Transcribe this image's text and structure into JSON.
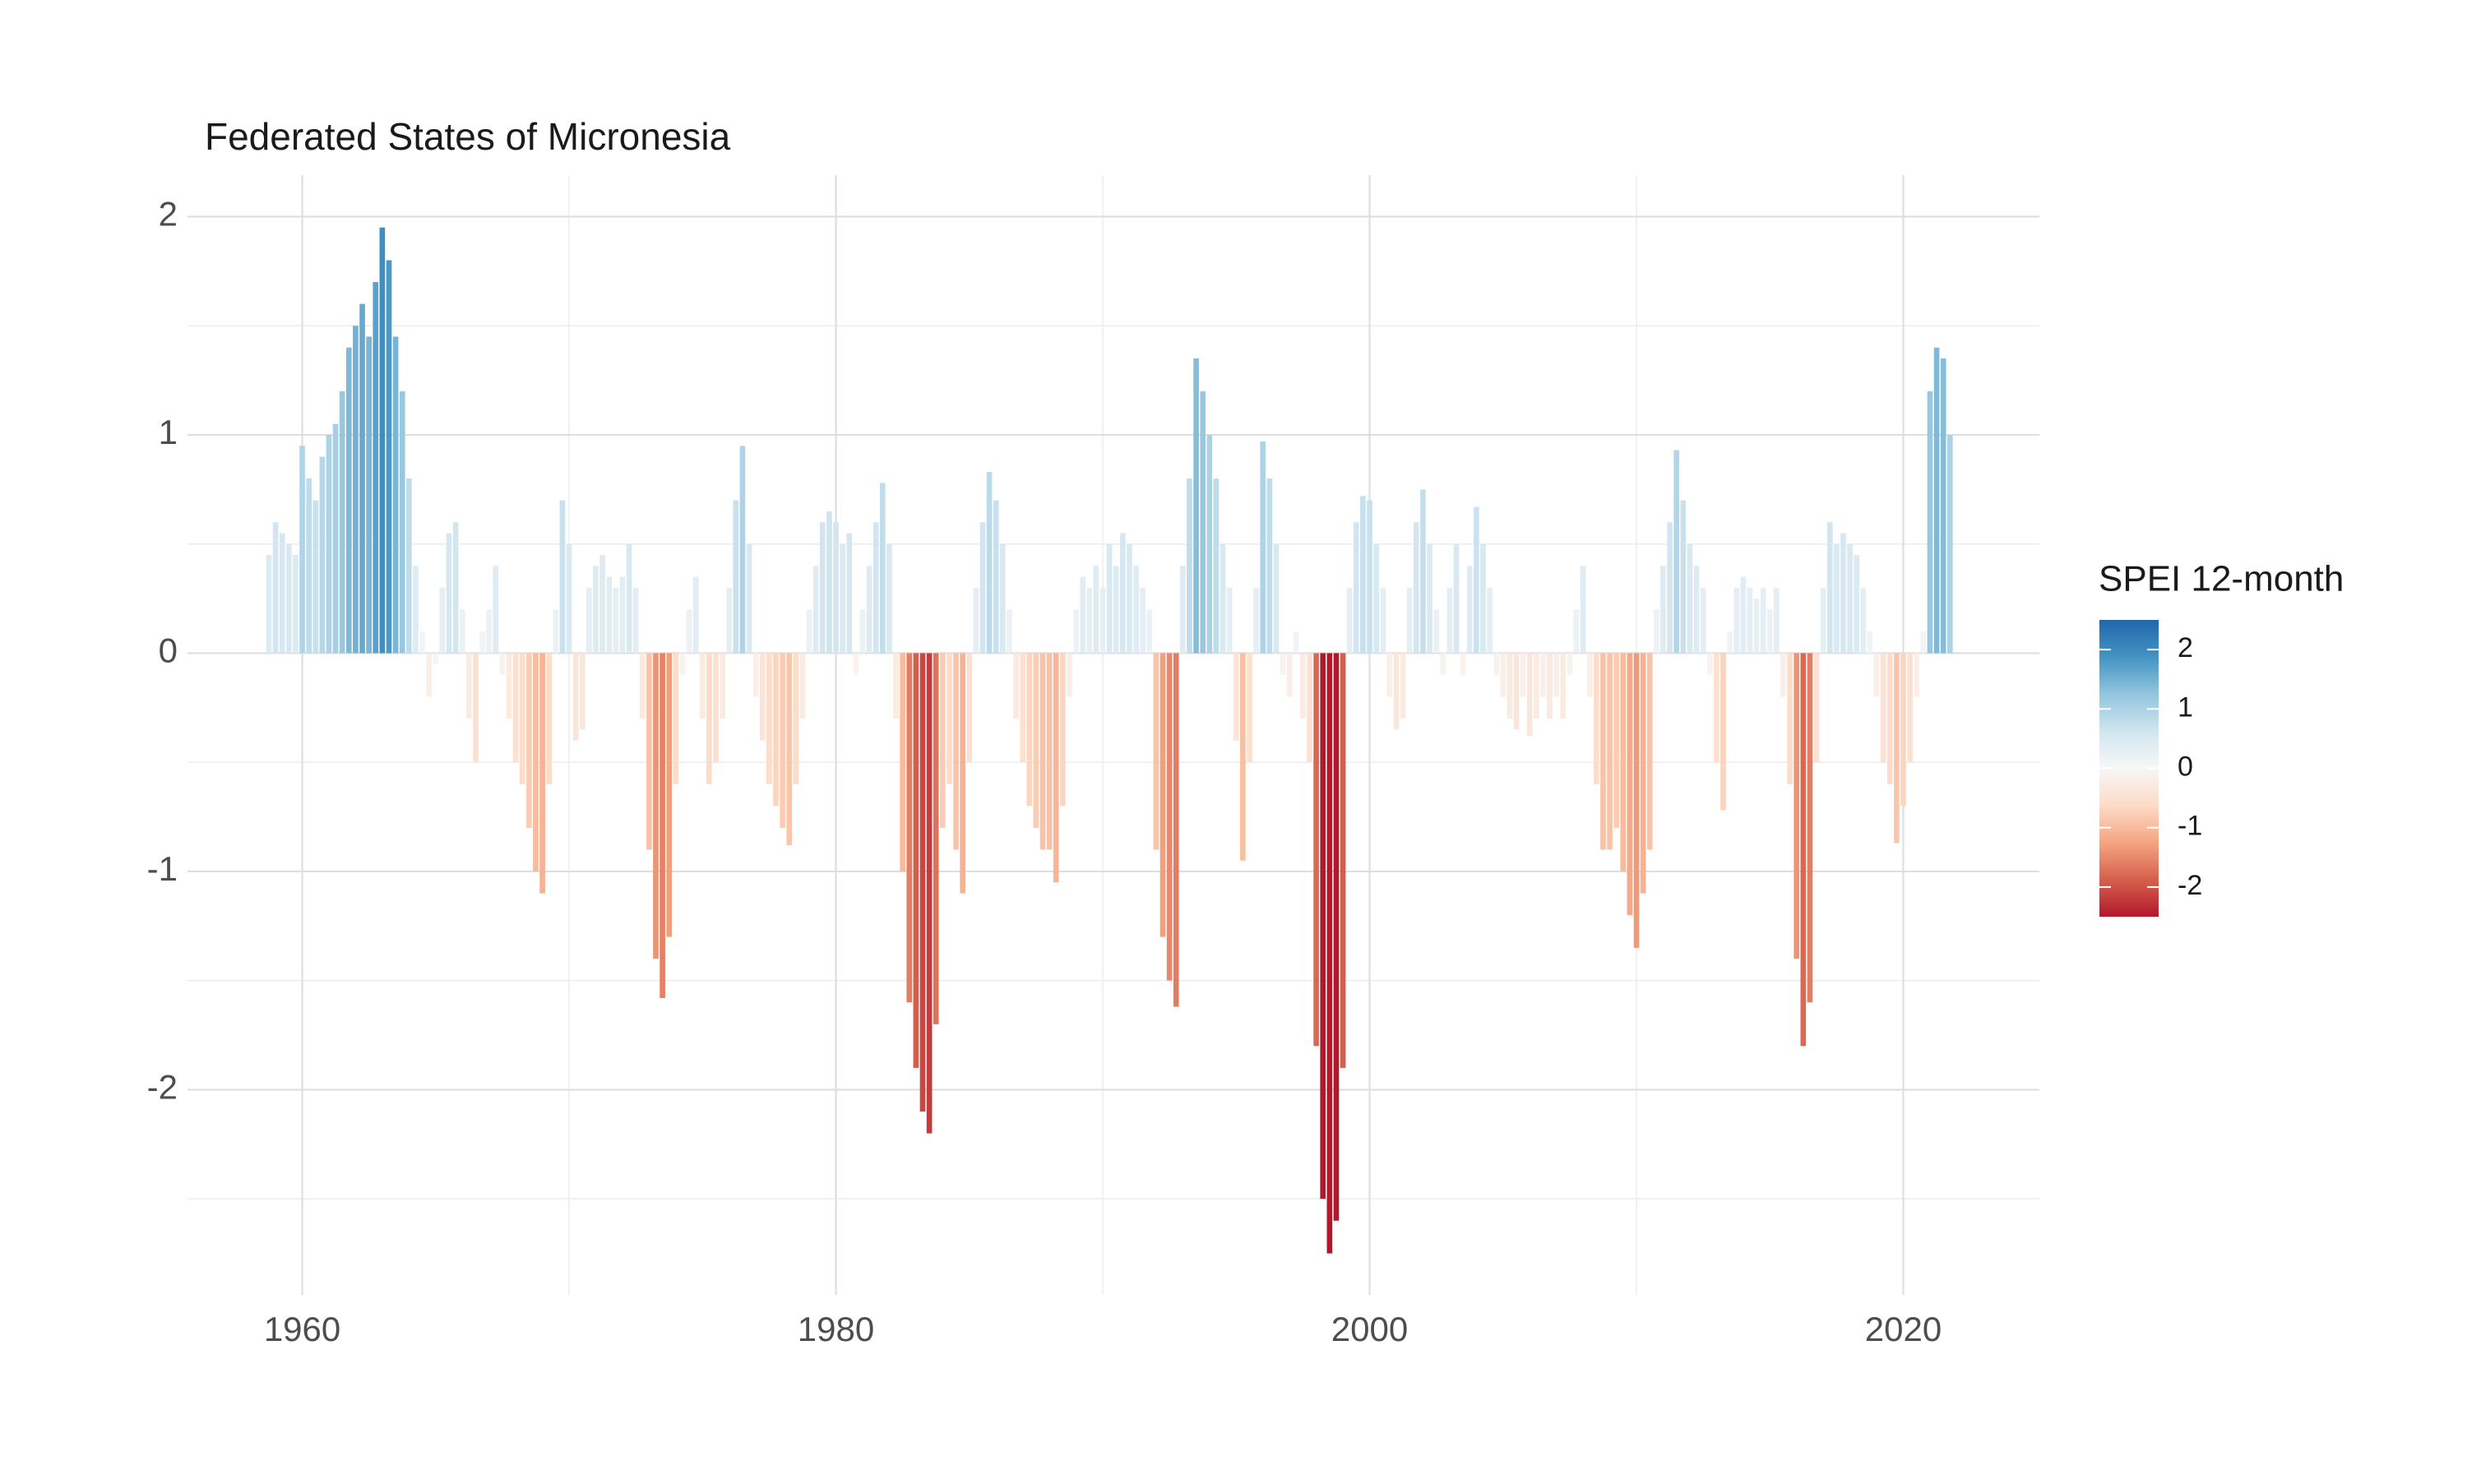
{
  "chart_data": {
    "type": "bar",
    "title": "Federated States of Micronesia",
    "legend_title": "SPEI 12-month",
    "x": [
      1958.75,
      1959,
      1959.25,
      1959.5,
      1959.75,
      1960,
      1960.25,
      1960.5,
      1960.75,
      1961,
      1961.25,
      1961.5,
      1961.75,
      1962,
      1962.25,
      1962.5,
      1962.75,
      1963,
      1963.25,
      1963.5,
      1963.75,
      1964,
      1964.25,
      1964.5,
      1964.75,
      1965,
      1965.25,
      1965.5,
      1965.75,
      1966,
      1966.25,
      1966.5,
      1966.75,
      1967,
      1967.25,
      1967.5,
      1967.75,
      1968,
      1968.25,
      1968.5,
      1968.75,
      1969,
      1969.25,
      1969.5,
      1969.75,
      1970,
      1970.25,
      1970.5,
      1970.75,
      1971,
      1971.25,
      1971.5,
      1971.75,
      1972,
      1972.25,
      1972.5,
      1972.75,
      1973,
      1973.25,
      1973.5,
      1973.75,
      1974,
      1974.25,
      1974.5,
      1974.75,
      1975,
      1975.25,
      1975.5,
      1975.75,
      1976,
      1976.25,
      1976.5,
      1976.75,
      1977,
      1977.25,
      1977.5,
      1977.75,
      1978,
      1978.25,
      1978.5,
      1978.75,
      1979,
      1979.25,
      1979.5,
      1979.75,
      1980,
      1980.25,
      1980.5,
      1980.75,
      1981,
      1981.25,
      1981.5,
      1981.75,
      1982,
      1982.25,
      1982.5,
      1982.75,
      1983,
      1983.25,
      1983.5,
      1983.75,
      1984,
      1984.25,
      1984.5,
      1984.75,
      1985,
      1985.25,
      1985.5,
      1985.75,
      1986,
      1986.25,
      1986.5,
      1986.75,
      1987,
      1987.25,
      1987.5,
      1987.75,
      1988,
      1988.25,
      1988.5,
      1988.75,
      1989,
      1989.25,
      1989.5,
      1989.75,
      1990,
      1990.25,
      1990.5,
      1990.75,
      1991,
      1991.25,
      1991.5,
      1991.75,
      1992,
      1992.25,
      1992.5,
      1992.75,
      1993,
      1993.25,
      1993.5,
      1993.75,
      1994,
      1994.25,
      1994.5,
      1994.75,
      1995,
      1995.25,
      1995.5,
      1995.75,
      1996,
      1996.25,
      1996.5,
      1996.75,
      1997,
      1997.25,
      1997.5,
      1997.75,
      1998,
      1998.25,
      1998.5,
      1998.75,
      1999,
      1999.25,
      1999.5,
      1999.75,
      2000,
      2000.25,
      2000.5,
      2000.75,
      2001,
      2001.25,
      2001.5,
      2001.75,
      2002,
      2002.25,
      2002.5,
      2002.75,
      2003,
      2003.25,
      2003.5,
      2003.75,
      2004,
      2004.25,
      2004.5,
      2004.75,
      2005,
      2005.25,
      2005.5,
      2005.75,
      2006,
      2006.25,
      2006.5,
      2006.75,
      2007,
      2007.25,
      2007.5,
      2007.75,
      2008,
      2008.25,
      2008.5,
      2008.75,
      2009,
      2009.25,
      2009.5,
      2009.75,
      2010,
      2010.25,
      2010.5,
      2010.75,
      2011,
      2011.25,
      2011.5,
      2011.75,
      2012,
      2012.25,
      2012.5,
      2012.75,
      2013,
      2013.25,
      2013.5,
      2013.75,
      2014,
      2014.25,
      2014.5,
      2014.75,
      2015,
      2015.25,
      2015.5,
      2015.75,
      2016,
      2016.25,
      2016.5,
      2016.75,
      2017,
      2017.25,
      2017.5,
      2017.75,
      2018,
      2018.25,
      2018.5,
      2018.75,
      2019,
      2019.25,
      2019.5,
      2019.75,
      2020,
      2020.25,
      2020.5,
      2020.75,
      2021,
      2021.25,
      2021.5,
      2021.75
    ],
    "values": [
      0.45,
      0.6,
      0.55,
      0.5,
      0.45,
      0.95,
      0.8,
      0.7,
      0.9,
      1.0,
      1.05,
      1.2,
      1.4,
      1.5,
      1.6,
      1.45,
      1.7,
      1.95,
      1.8,
      1.45,
      1.2,
      0.8,
      0.4,
      0.1,
      -0.2,
      -0.05,
      0.3,
      0.55,
      0.6,
      0.2,
      -0.3,
      -0.5,
      0.1,
      0.2,
      0.4,
      -0.1,
      -0.3,
      -0.5,
      -0.6,
      -0.8,
      -1.0,
      -1.1,
      -0.6,
      0.2,
      0.7,
      0.5,
      -0.4,
      -0.35,
      0.3,
      0.4,
      0.45,
      0.35,
      0.3,
      0.35,
      0.5,
      0.3,
      -0.3,
      -0.9,
      -1.4,
      -1.58,
      -1.3,
      -0.6,
      -0.1,
      0.2,
      0.35,
      -0.3,
      -0.6,
      -0.5,
      -0.3,
      0.3,
      0.7,
      0.95,
      0.5,
      -0.2,
      -0.4,
      -0.6,
      -0.7,
      -0.8,
      -0.88,
      -0.6,
      -0.3,
      0.2,
      0.4,
      0.6,
      0.65,
      0.6,
      0.5,
      0.55,
      -0.1,
      0.2,
      0.4,
      0.6,
      0.78,
      0.5,
      -0.3,
      -1.0,
      -1.6,
      -1.9,
      -2.1,
      -2.2,
      -1.7,
      -0.8,
      -0.6,
      -0.9,
      -1.1,
      -0.5,
      0.3,
      0.6,
      0.83,
      0.7,
      0.5,
      0.2,
      -0.3,
      -0.5,
      -0.7,
      -0.8,
      -0.9,
      -0.9,
      -1.05,
      -0.7,
      -0.2,
      0.2,
      0.35,
      0.3,
      0.4,
      0.3,
      0.5,
      0.4,
      0.55,
      0.5,
      0.4,
      0.3,
      0.2,
      -0.9,
      -1.3,
      -1.5,
      -1.62,
      0.4,
      0.8,
      1.35,
      1.2,
      1.0,
      0.8,
      0.5,
      0.3,
      -0.4,
      -0.95,
      -0.5,
      0.3,
      0.97,
      0.8,
      0.5,
      -0.1,
      -0.2,
      0.1,
      -0.3,
      -0.5,
      -1.8,
      -2.5,
      -2.75,
      -2.6,
      -1.9,
      0.3,
      0.6,
      0.72,
      0.7,
      0.5,
      0.3,
      -0.2,
      -0.35,
      -0.3,
      0.3,
      0.6,
      0.75,
      0.5,
      0.2,
      -0.1,
      0.3,
      0.5,
      -0.1,
      0.4,
      0.67,
      0.5,
      0.3,
      -0.1,
      -0.2,
      -0.3,
      -0.35,
      -0.2,
      -0.38,
      -0.3,
      -0.2,
      -0.3,
      -0.2,
      -0.3,
      -0.1,
      0.2,
      0.4,
      -0.2,
      -0.6,
      -0.9,
      -0.9,
      -0.8,
      -1.0,
      -1.2,
      -1.35,
      -1.1,
      -0.9,
      0.2,
      0.4,
      0.6,
      0.93,
      0.7,
      0.5,
      0.4,
      0.3,
      -0.1,
      -0.5,
      -0.72,
      0.1,
      0.3,
      0.35,
      0.3,
      0.25,
      0.3,
      0.2,
      0.3,
      -0.2,
      -0.6,
      -1.4,
      -1.8,
      -1.6,
      -0.5,
      0.3,
      0.6,
      0.5,
      0.55,
      0.5,
      0.45,
      0.3,
      0.1,
      -0.2,
      -0.5,
      -0.6,
      -0.87,
      -0.7,
      -0.5,
      -0.2,
      0.1,
      1.2,
      1.4,
      1.35,
      1.0
    ],
    "xlim": [
      1955.7,
      2025.1
    ],
    "ylim": [
      -2.94,
      2.19
    ],
    "xticks": [
      1960,
      1980,
      2000,
      2020
    ],
    "yticks": [
      -2,
      -1,
      0,
      1,
      2
    ],
    "grid": true,
    "color_scale": {
      "colors": [
        "#b2182b",
        "#d6604d",
        "#f4a582",
        "#fddbc7",
        "#f7f7f7",
        "#d1e5f0",
        "#92c5de",
        "#4393c3",
        "#2166ac"
      ],
      "lim": [
        -2.5,
        2.5
      ],
      "ticks": [
        -2,
        -1,
        0,
        1,
        2
      ]
    }
  }
}
